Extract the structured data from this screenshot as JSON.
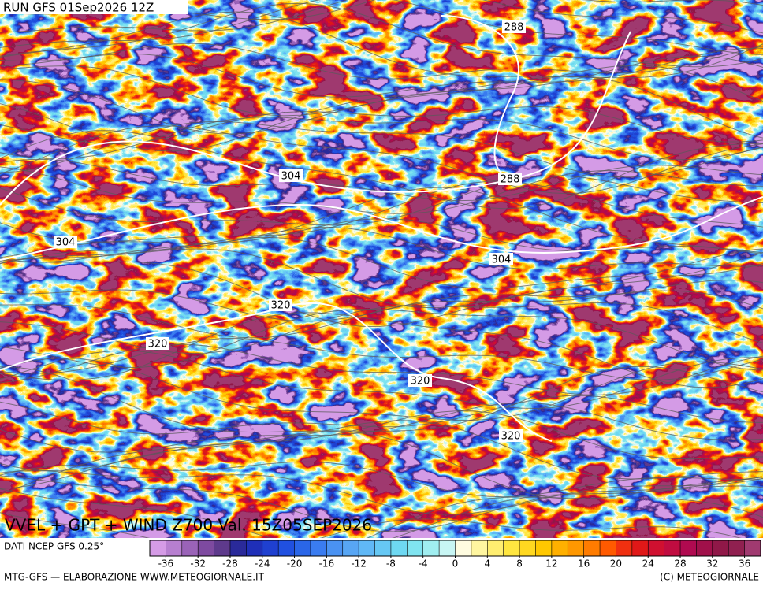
{
  "run_label": "RUN GFS 01Sep2026 12Z",
  "map_title": "VVEL + GPT + WIND Z700 Val. 15Z05SEP2026",
  "source": "DATI NCEP GFS 0.25°",
  "credit_left": "MTG-GFS — ELABORAZIONE WWW.METEOGIORNALE.IT",
  "credit_right": "(C) METEOGIORNALE",
  "contour_labels": [
    288,
    288,
    304,
    304,
    304,
    320,
    320,
    320,
    320
  ],
  "colorbar": {
    "lim": [
      -38,
      38
    ],
    "ticks": [
      -36,
      -32,
      -28,
      -24,
      -20,
      -16,
      -12,
      -8,
      -4,
      0,
      4,
      8,
      12,
      16,
      20,
      24,
      28,
      32,
      36
    ],
    "colors": [
      "#d59be6",
      "#b77fd0",
      "#9a63b8",
      "#7e4aa0",
      "#5e3a8c",
      "#2a2a9a",
      "#1f2fb8",
      "#1f40d0",
      "#2050e0",
      "#2a66e8",
      "#3a7cf0",
      "#4a92f2",
      "#58a6f4",
      "#60b8f6",
      "#66c8f4",
      "#6ed8f2",
      "#80e4f0",
      "#a0eef0",
      "#c8f6f4",
      "#fffce0",
      "#fff6a0",
      "#ffee70",
      "#ffe640",
      "#ffd820",
      "#ffc800",
      "#ffb000",
      "#ff9800",
      "#ff7c00",
      "#ff5a00",
      "#f03010",
      "#e01818",
      "#d01030",
      "#c00c40",
      "#b00a50",
      "#a0104a",
      "#901848",
      "#902050",
      "#a03a70"
    ]
  }
}
